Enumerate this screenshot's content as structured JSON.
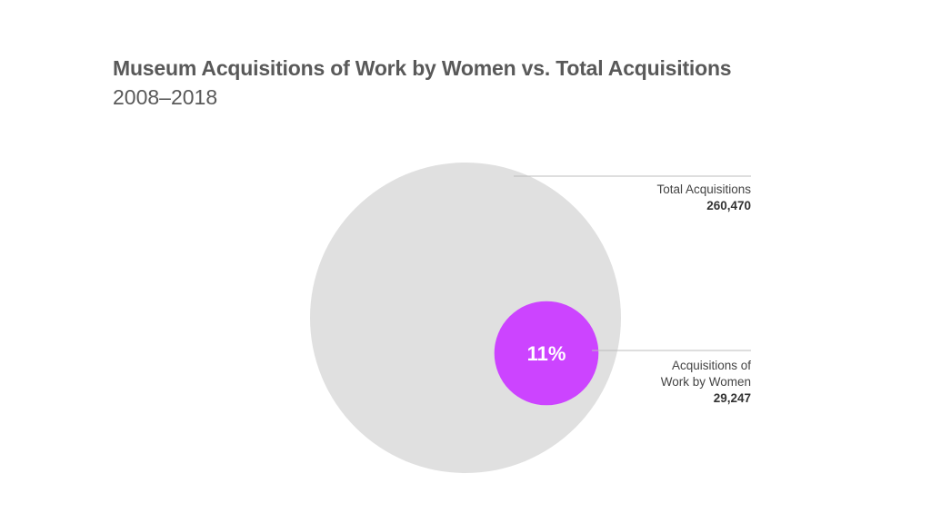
{
  "chart_data": {
    "type": "area",
    "title": "Museum Acquisitions of Work by Women vs. Total Acquisitions",
    "subtitle": "2008–2018",
    "series": [
      {
        "name": "Total Acquisitions",
        "value": 260470,
        "value_label": "260,470",
        "color": "#e0e0e0"
      },
      {
        "name": "Acquisitions of Work by Women",
        "name_lines": [
          "Acquisitions of",
          "Work by Women"
        ],
        "value": 29247,
        "value_label": "29,247",
        "color": "#cc44ff",
        "percent_label": "11%"
      }
    ]
  }
}
